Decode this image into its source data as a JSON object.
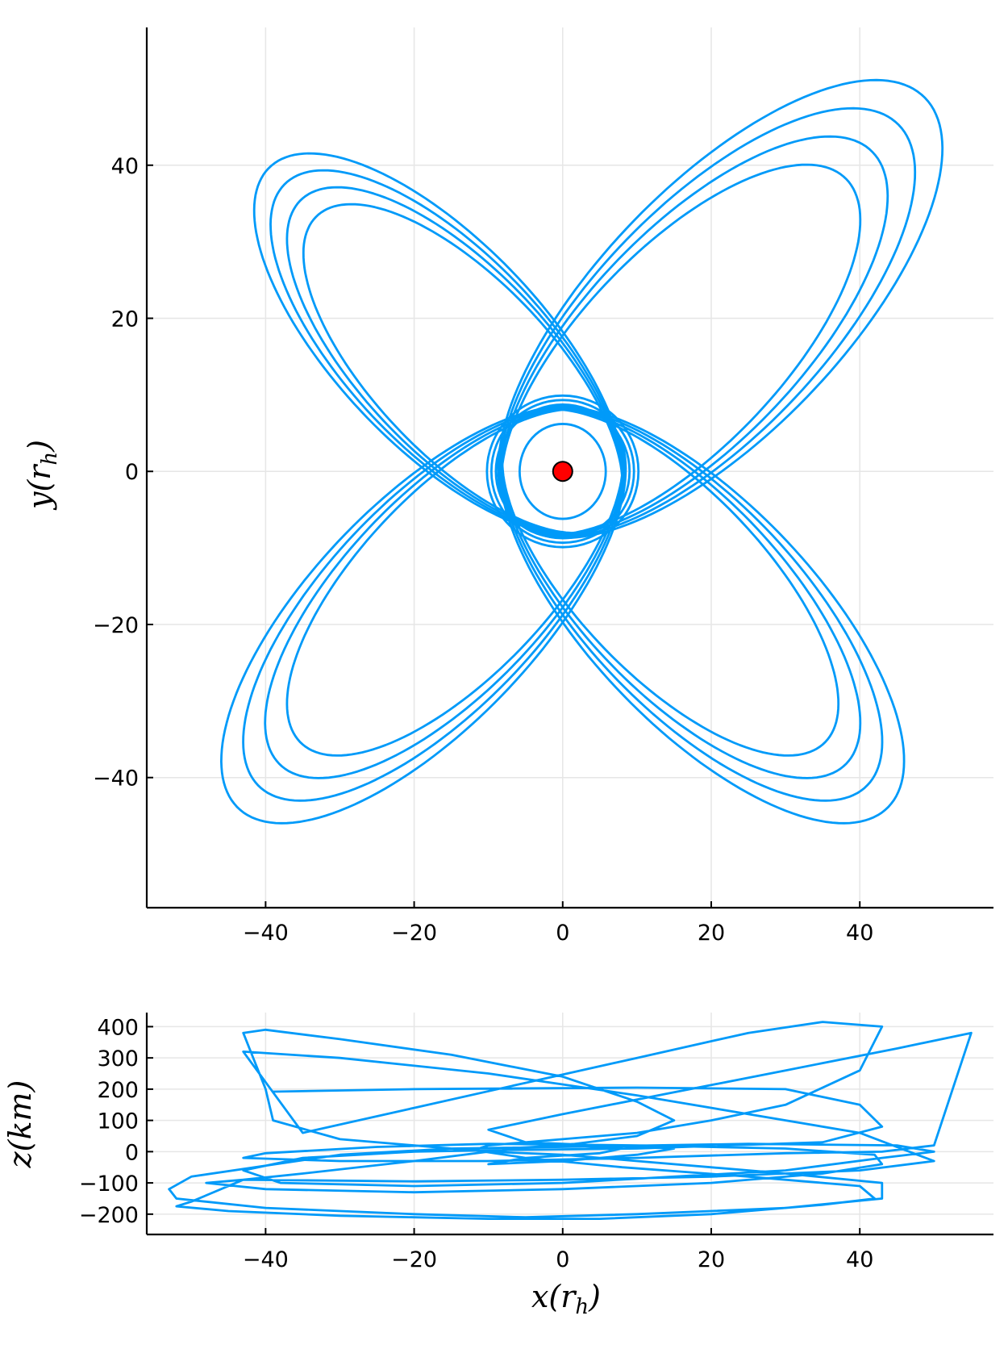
{
  "chart_data": [
    {
      "type": "line",
      "panel": "top",
      "xlabel": "x",
      "xlabel_sub": "h",
      "ylabel": "y",
      "ylabel_sub": "h",
      "xlim": [
        -56,
        58
      ],
      "ylim": [
        -57,
        58
      ],
      "xticks": [
        -40,
        -20,
        0,
        20,
        40
      ],
      "xtick_labels": [
        "−40",
        "−20",
        "0",
        "20",
        "40"
      ],
      "yticks": [
        -40,
        -20,
        0,
        20,
        40
      ],
      "ytick_labels": [
        "−40",
        "−20",
        "0",
        "20",
        "40"
      ],
      "grid": true,
      "legend": "none",
      "line_color": "#009af9",
      "marker": {
        "x": 0,
        "y": 0,
        "color": "#ff0000",
        "label": "central body"
      },
      "inner_orbit": {
        "rx": 5.8,
        "ry": 6.2,
        "cx": 0,
        "cy": 0
      },
      "petals": [
        {
          "angle_deg": 45,
          "far_distance": [
            54,
            59,
            64,
            69
          ],
          "near_distance": 9
        },
        {
          "angle_deg": 135,
          "far_distance": [
            47,
            50,
            53,
            56
          ],
          "near_distance": 9
        },
        {
          "angle_deg": 225,
          "far_distance": [
            50,
            54,
            58,
            62
          ],
          "near_distance": 9
        },
        {
          "angle_deg": 315,
          "far_distance": [
            50,
            54,
            58,
            62
          ],
          "near_distance": 9
        }
      ]
    },
    {
      "type": "line",
      "panel": "bottom",
      "xlabel": "x",
      "xlabel_sub": "h",
      "ylabel": "z(km)",
      "xlim": [
        -56,
        58
      ],
      "ylim": [
        -265,
        445
      ],
      "xticks": [
        -40,
        -20,
        0,
        20,
        40
      ],
      "xtick_labels": [
        "−40",
        "−20",
        "0",
        "20",
        "40"
      ],
      "yticks": [
        -200,
        -100,
        0,
        100,
        200,
        300,
        400
      ],
      "ytick_labels": [
        "−200",
        "−100",
        "0",
        "100",
        "200",
        "300",
        "400"
      ],
      "grid": true,
      "legend": "none",
      "line_color": "#009af9",
      "path_points": [
        [
          -39,
          192
        ],
        [
          -20,
          200
        ],
        [
          10,
          205
        ],
        [
          30,
          200
        ],
        [
          40,
          150
        ],
        [
          43,
          80
        ],
        [
          35,
          30
        ],
        [
          10,
          10
        ],
        [
          -8,
          5
        ],
        [
          -20,
          0
        ],
        [
          -35,
          -20
        ],
        [
          -43,
          -60
        ],
        [
          -38,
          -100
        ],
        [
          -20,
          -110
        ],
        [
          0,
          -100
        ],
        [
          15,
          -80
        ],
        [
          30,
          -60
        ],
        [
          43,
          -20
        ],
        [
          50,
          0
        ],
        [
          45,
          20
        ],
        [
          25,
          25
        ],
        [
          0,
          15
        ],
        [
          -15,
          10
        ],
        [
          -30,
          -10
        ],
        [
          -50,
          -80
        ],
        [
          -53,
          -120
        ],
        [
          -52,
          -150
        ],
        [
          -40,
          -180
        ],
        [
          -20,
          -200
        ],
        [
          -5,
          -210
        ],
        [
          10,
          -200
        ],
        [
          30,
          -180
        ],
        [
          43,
          -150
        ],
        [
          43,
          -100
        ],
        [
          30,
          -70
        ],
        [
          10,
          -30
        ],
        [
          0,
          -10
        ],
        [
          -10,
          0
        ],
        [
          -30,
          40
        ],
        [
          -39,
          100
        ],
        [
          -40,
          200
        ],
        [
          -42,
          320
        ],
        [
          -43,
          380
        ],
        [
          -40,
          390
        ],
        [
          -30,
          360
        ],
        [
          -15,
          310
        ],
        [
          0,
          240
        ],
        [
          10,
          160
        ],
        [
          15,
          100
        ],
        [
          10,
          50
        ],
        [
          0,
          20
        ],
        [
          -10,
          0
        ],
        [
          -20,
          -30
        ],
        [
          -35,
          -70
        ],
        [
          -43,
          -90
        ],
        [
          -50,
          -160
        ],
        [
          -52,
          -175
        ],
        [
          -45,
          -190
        ],
        [
          -30,
          -205
        ],
        [
          -10,
          -215
        ],
        [
          5,
          -215
        ],
        [
          20,
          -200
        ],
        [
          35,
          -170
        ],
        [
          42,
          -150
        ],
        [
          40,
          -110
        ],
        [
          25,
          -80
        ],
        [
          8,
          -50
        ],
        [
          -5,
          -20
        ],
        [
          -12,
          5
        ],
        [
          -10,
          20
        ],
        [
          0,
          40
        ],
        [
          10,
          60
        ],
        [
          20,
          100
        ],
        [
          30,
          150
        ],
        [
          40,
          260
        ],
        [
          43,
          400
        ],
        [
          35,
          415
        ],
        [
          25,
          380
        ],
        [
          10,
          300
        ],
        [
          -5,
          220
        ],
        [
          -20,
          140
        ],
        [
          -35,
          60
        ],
        [
          -43,
          320
        ],
        [
          -30,
          300
        ],
        [
          -10,
          250
        ],
        [
          10,
          180
        ],
        [
          25,
          120
        ],
        [
          40,
          60
        ],
        [
          50,
          -30
        ],
        [
          40,
          -60
        ],
        [
          20,
          -80
        ],
        [
          0,
          -90
        ],
        [
          -20,
          -95
        ],
        [
          -43,
          -90
        ],
        [
          -48,
          -100
        ],
        [
          -40,
          -120
        ],
        [
          -20,
          -130
        ],
        [
          0,
          -120
        ],
        [
          20,
          -100
        ],
        [
          35,
          -70
        ],
        [
          43,
          -40
        ],
        [
          42,
          -10
        ],
        [
          30,
          10
        ],
        [
          10,
          20
        ],
        [
          -10,
          25
        ],
        [
          -25,
          15
        ],
        [
          -40,
          -5
        ],
        [
          -43,
          -20
        ],
        [
          -30,
          -30
        ],
        [
          -10,
          -30
        ],
        [
          10,
          -20
        ],
        [
          30,
          -5
        ],
        [
          43,
          0
        ],
        [
          50,
          20
        ],
        [
          55,
          380
        ],
        [
          45,
          330
        ],
        [
          30,
          260
        ],
        [
          15,
          190
        ],
        [
          0,
          120
        ],
        [
          -10,
          70
        ],
        [
          -5,
          30
        ],
        [
          5,
          20
        ],
        [
          15,
          10
        ],
        [
          10,
          -10
        ],
        [
          0,
          -30
        ],
        [
          -10,
          -40
        ],
        [
          -5,
          -20
        ],
        [
          5,
          -5
        ],
        [
          8,
          10
        ],
        [
          0,
          20
        ],
        [
          -8,
          10
        ]
      ]
    }
  ]
}
